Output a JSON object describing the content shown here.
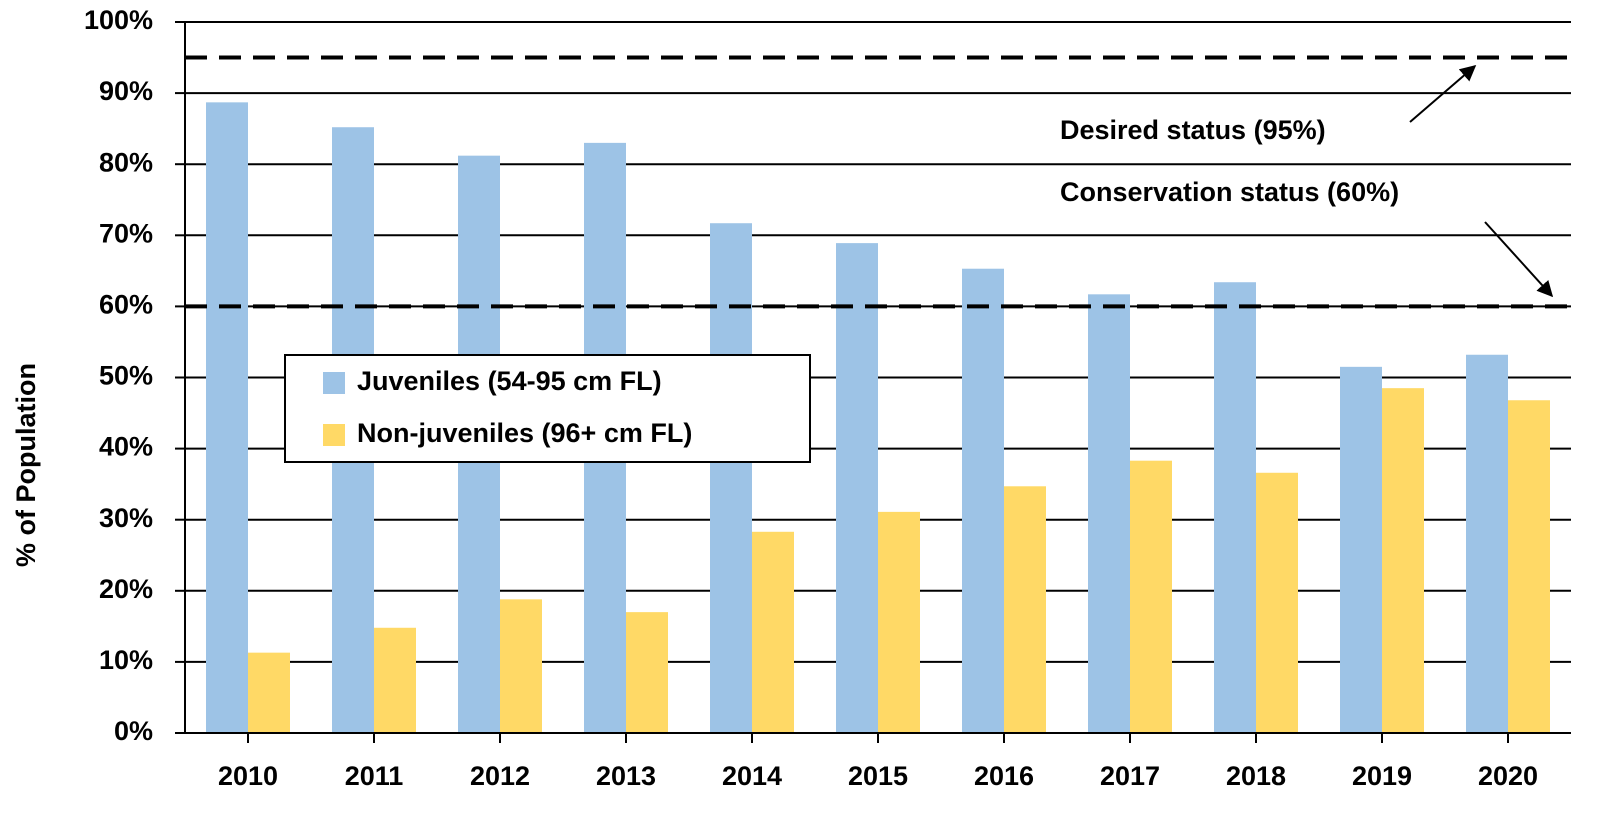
{
  "chart_data": {
    "type": "bar",
    "y_axis_label": "% of Population",
    "categories": [
      "2010",
      "2011",
      "2012",
      "2013",
      "2014",
      "2015",
      "2016",
      "2017",
      "2018",
      "2019",
      "2020"
    ],
    "series": [
      {
        "name": "Juveniles (54-95 cm FL)",
        "color": "#9dc3e6",
        "values": [
          88.7,
          85.2,
          81.2,
          83.0,
          71.7,
          68.9,
          65.3,
          61.7,
          63.4,
          51.5,
          53.2
        ]
      },
      {
        "name": "Non-juveniles (96+ cm FL)",
        "color": "#ffd966",
        "values": [
          11.3,
          14.8,
          18.8,
          17.0,
          28.3,
          31.1,
          34.7,
          38.3,
          36.6,
          48.5,
          46.8
        ]
      }
    ],
    "ylim": [
      0,
      100
    ],
    "yticks": [
      {
        "value": 0,
        "label": "0%"
      },
      {
        "value": 10,
        "label": "10%"
      },
      {
        "value": 20,
        "label": "20%"
      },
      {
        "value": 30,
        "label": "30%"
      },
      {
        "value": 40,
        "label": "40%"
      },
      {
        "value": 50,
        "label": "50%"
      },
      {
        "value": 60,
        "label": "60%"
      },
      {
        "value": 70,
        "label": "70%"
      },
      {
        "value": 80,
        "label": "80%"
      },
      {
        "value": 90,
        "label": "90%"
      },
      {
        "value": 100,
        "label": "100%"
      }
    ],
    "grid": true,
    "reference_lines": [
      {
        "value": 95,
        "label": "Desired status (95%)"
      },
      {
        "value": 60,
        "label": "Conservation status (60%)"
      }
    ]
  }
}
